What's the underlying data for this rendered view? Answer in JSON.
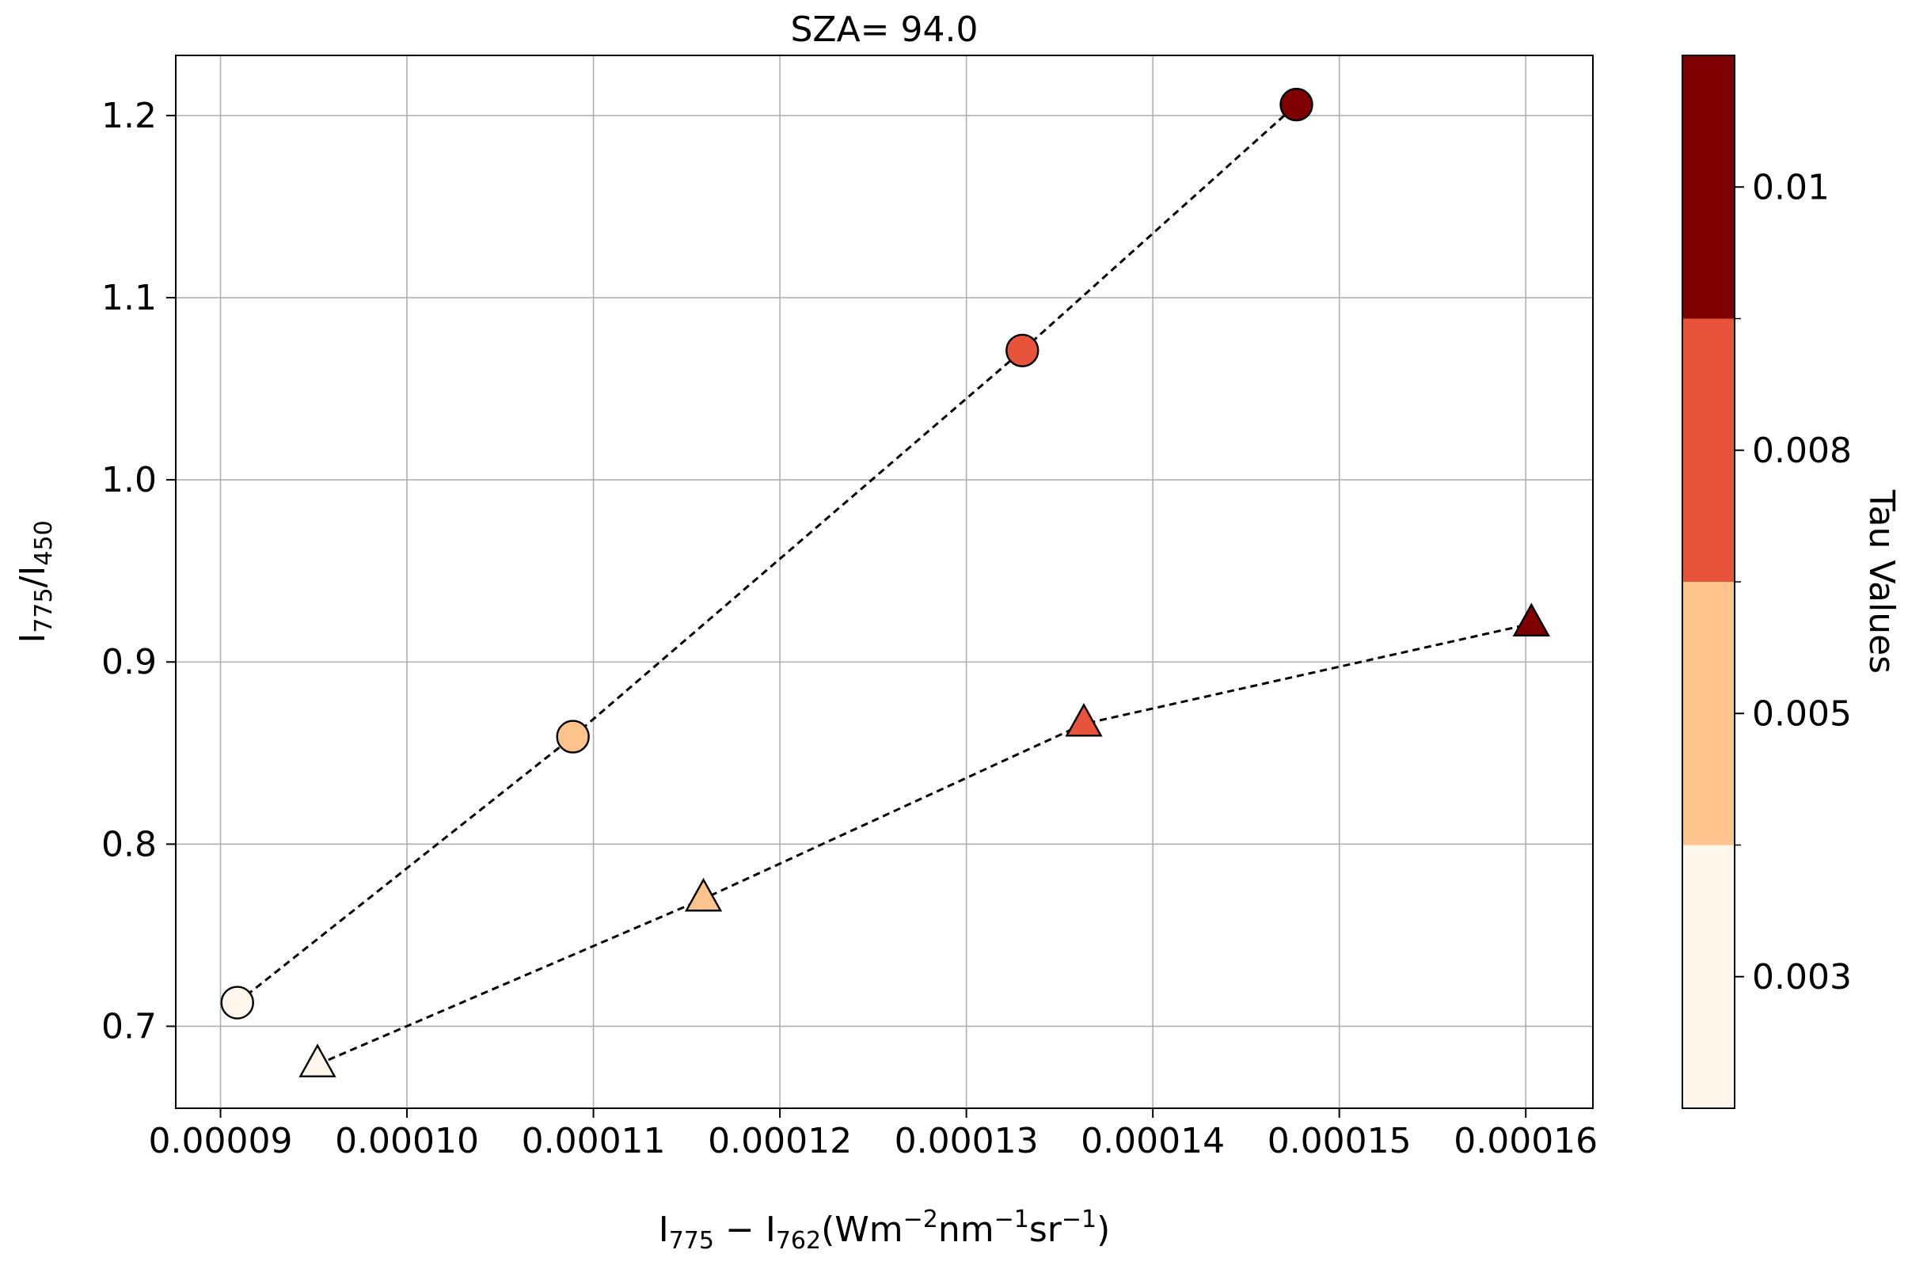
{
  "chart_data": {
    "type": "scatter",
    "title": "SZA= 94.0",
    "xlabel": {
      "base1": "I",
      "sub1": "775",
      "minus": " − ",
      "base2": "I",
      "sub2": "762",
      "unit_open": "(Wm",
      "exp1": "−2",
      "unit_mid": "nm",
      "exp2": "−1",
      "unit_end": "sr",
      "exp3": "−1",
      "unit_close": ")"
    },
    "ylabel": {
      "base1": "I",
      "sub1": "775",
      "slash": "/",
      "base2": "I",
      "sub2": "450"
    },
    "xlim": [
      8.76e-05,
      0.0001636
    ],
    "ylim": [
      0.655,
      1.233
    ],
    "xticks": [
      9e-05,
      0.0001,
      0.00011,
      0.00012,
      0.00013,
      0.00014,
      0.00015,
      0.00016
    ],
    "xtick_labels": [
      "0.00009",
      "0.00010",
      "0.00011",
      "0.00012",
      "0.00013",
      "0.00014",
      "0.00015",
      "0.00016"
    ],
    "yticks": [
      0.7,
      0.8,
      0.9,
      1.0,
      1.1,
      1.2
    ],
    "ytick_labels": [
      "0.7",
      "0.8",
      "0.9",
      "1.0",
      "1.1",
      "1.2"
    ],
    "grid": true,
    "series": [
      {
        "marker": "circle",
        "x": [
          9.09e-05,
          0.0001089,
          0.000133,
          0.0001477
        ],
        "y": [
          0.713,
          0.859,
          1.071,
          1.206
        ],
        "tau": [
          0.003,
          0.005,
          0.008,
          0.01
        ],
        "line_style": "dashed"
      },
      {
        "marker": "triangle",
        "x": [
          9.52e-05,
          0.0001159,
          0.0001363,
          0.0001603
        ],
        "y": [
          0.679,
          0.77,
          0.866,
          0.921
        ],
        "tau": [
          0.003,
          0.005,
          0.008,
          0.01
        ],
        "line_style": "dashed"
      }
    ],
    "colorbar": {
      "label": "Tau Values",
      "levels": [
        0.003,
        0.005,
        0.008,
        0.01
      ],
      "tick_labels": [
        "0.003",
        "0.005",
        "0.008",
        "0.01"
      ],
      "colors": [
        "#fff7ec",
        "#fdc38d",
        "#e8533b",
        "#7f0000"
      ]
    }
  }
}
